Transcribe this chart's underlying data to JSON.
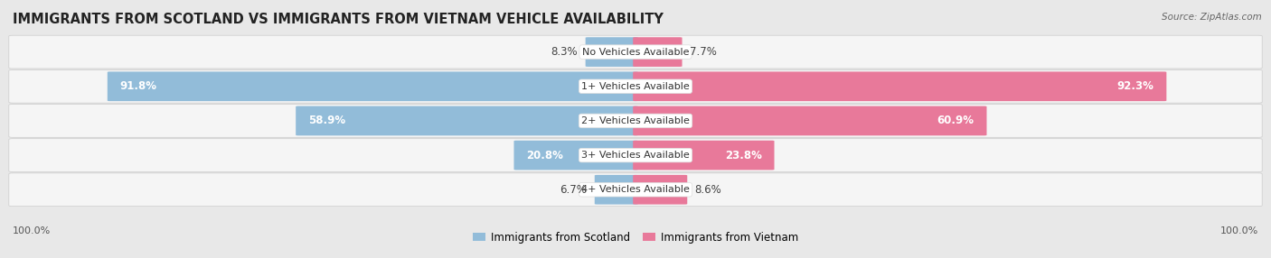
{
  "title": "IMMIGRANTS FROM SCOTLAND VS IMMIGRANTS FROM VIETNAM VEHICLE AVAILABILITY",
  "source": "Source: ZipAtlas.com",
  "categories": [
    "No Vehicles Available",
    "1+ Vehicles Available",
    "2+ Vehicles Available",
    "3+ Vehicles Available",
    "4+ Vehicles Available"
  ],
  "scotland_values": [
    8.3,
    91.8,
    58.9,
    20.8,
    6.7
  ],
  "vietnam_values": [
    7.7,
    92.3,
    60.9,
    23.8,
    8.6
  ],
  "scotland_color": "#92bcd9",
  "vietnam_color": "#e8799a",
  "scotland_color_light": "#b8d4e8",
  "vietnam_color_light": "#f0aabe",
  "scotland_label": "Immigrants from Scotland",
  "vietnam_label": "Immigrants from Vietnam",
  "bg_color": "#e8e8e8",
  "row_bg_color": "#f5f5f5",
  "axis_label": "100.0%",
  "title_fontsize": 10.5,
  "value_fontsize": 8.5,
  "cat_fontsize": 8.0,
  "legend_fontsize": 8.5,
  "source_fontsize": 7.5
}
